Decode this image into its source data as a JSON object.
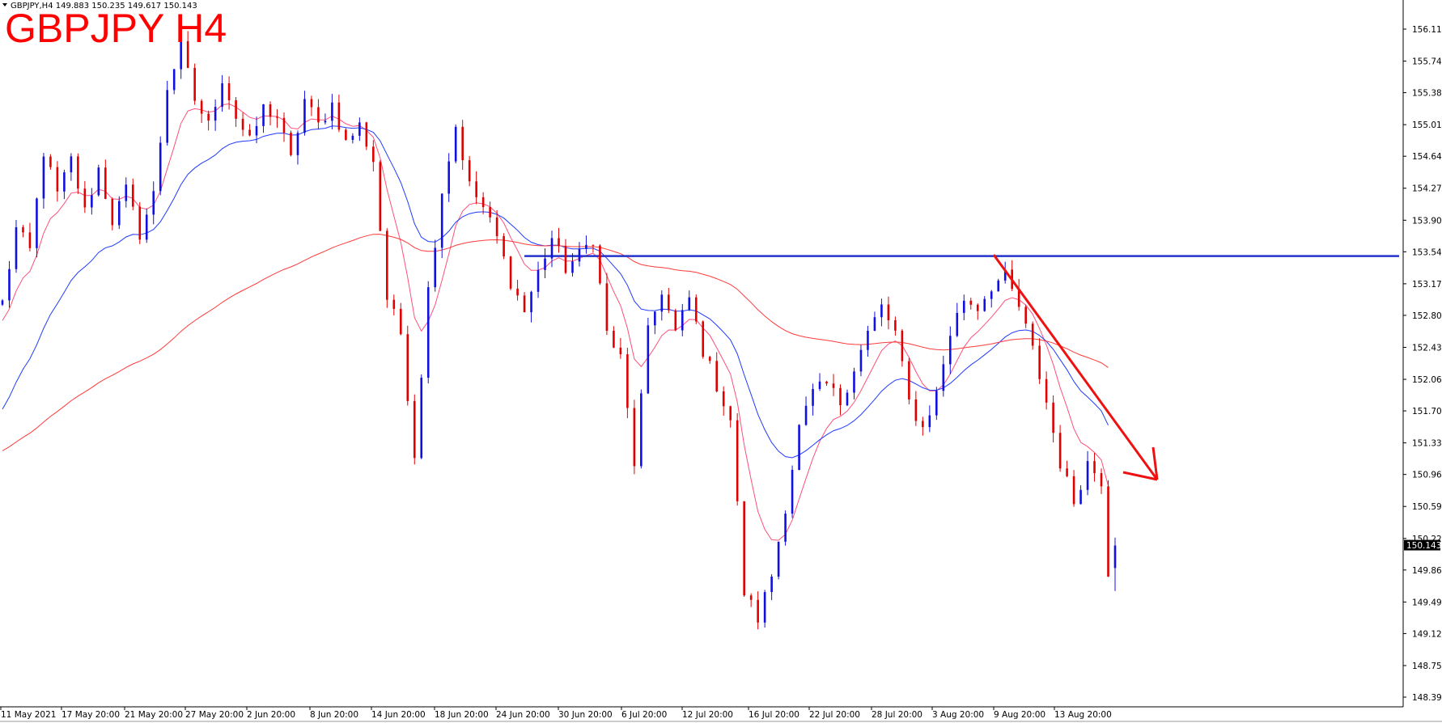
{
  "header": {
    "info_text": "GBPJPY,H4  149.883 150.235 149.617 150.143",
    "big_title": "GBPJPY H4"
  },
  "chart_data": {
    "type": "candlestick",
    "symbol": "GBPJPY",
    "timeframe": "H4",
    "ohlc_last": {
      "open": 149.883,
      "high": 150.235,
      "low": 149.617,
      "close": 150.143
    },
    "current_price_label": "150.143",
    "y_ticks": [
      "156.115",
      "155.745",
      "155.380",
      "155.010",
      "154.645",
      "154.275",
      "153.905",
      "153.540",
      "153.170",
      "152.805",
      "152.435",
      "152.065",
      "151.700",
      "151.330",
      "150.965",
      "150.595",
      "150.225",
      "149.860",
      "149.490",
      "149.125",
      "148.755",
      "148.390"
    ],
    "ylim": [
      148.39,
      156.115
    ],
    "x_ticks": [
      "11 May 2021",
      "17 May 20:00",
      "21 May 20:00",
      "27 May 20:00",
      "2 Jun 20:00",
      "8 Jun 20:00",
      "14 Jun 20:00",
      "18 Jun 20:00",
      "24 Jun 20:00",
      "30 Jun 20:00",
      "6 Jul 20:00",
      "12 Jul 20:00",
      "16 Jul 20:00",
      "22 Jul 20:00",
      "28 Jul 20:00",
      "3 Aug 20:00",
      "9 Aug 20:00",
      "13 Aug 20:00"
    ],
    "price_path": [
      [
        0,
        152.95
      ],
      [
        2,
        153.8
      ],
      [
        4,
        153.55
      ],
      [
        6,
        154.7
      ],
      [
        8,
        154.2
      ],
      [
        10,
        154.6
      ],
      [
        12,
        154.0
      ],
      [
        14,
        154.5
      ],
      [
        16,
        153.9
      ],
      [
        18,
        154.25
      ],
      [
        20,
        153.75
      ],
      [
        22,
        154.2
      ],
      [
        24,
        155.45
      ],
      [
        26,
        155.9
      ],
      [
        28,
        155.3
      ],
      [
        30,
        155.0
      ],
      [
        32,
        155.55
      ],
      [
        34,
        155.1
      ],
      [
        36,
        154.8
      ],
      [
        38,
        155.2
      ],
      [
        40,
        155.1
      ],
      [
        42,
        154.6
      ],
      [
        44,
        155.3
      ],
      [
        46,
        155.0
      ],
      [
        48,
        155.25
      ],
      [
        50,
        154.8
      ],
      [
        52,
        155.0
      ],
      [
        54,
        154.6
      ],
      [
        56,
        153.0
      ],
      [
        58,
        152.6
      ],
      [
        60,
        151.2
      ],
      [
        62,
        153.1
      ],
      [
        64,
        154.25
      ],
      [
        66,
        155.0
      ],
      [
        68,
        154.3
      ],
      [
        70,
        154.05
      ],
      [
        72,
        153.7
      ],
      [
        74,
        153.2
      ],
      [
        76,
        152.85
      ],
      [
        78,
        153.3
      ],
      [
        80,
        153.7
      ],
      [
        82,
        153.35
      ],
      [
        84,
        153.5
      ],
      [
        86,
        153.7
      ],
      [
        88,
        152.6
      ],
      [
        90,
        152.3
      ],
      [
        92,
        151.1
      ],
      [
        94,
        152.6
      ],
      [
        96,
        153.1
      ],
      [
        98,
        152.6
      ],
      [
        100,
        153.0
      ],
      [
        102,
        152.4
      ],
      [
        104,
        152.0
      ],
      [
        106,
        151.6
      ],
      [
        108,
        149.6
      ],
      [
        110,
        149.3
      ],
      [
        112,
        149.8
      ],
      [
        114,
        150.6
      ],
      [
        116,
        151.5
      ],
      [
        118,
        151.9
      ],
      [
        120,
        152.0
      ],
      [
        122,
        151.8
      ],
      [
        124,
        152.2
      ],
      [
        126,
        152.6
      ],
      [
        128,
        152.9
      ],
      [
        130,
        152.6
      ],
      [
        132,
        151.8
      ],
      [
        134,
        151.5
      ],
      [
        136,
        151.9
      ],
      [
        138,
        152.6
      ],
      [
        140,
        153.0
      ],
      [
        142,
        152.9
      ],
      [
        144,
        153.15
      ],
      [
        146,
        153.25
      ],
      [
        148,
        152.9
      ],
      [
        150,
        152.4
      ],
      [
        152,
        151.8
      ],
      [
        154,
        151.1
      ],
      [
        156,
        150.65
      ],
      [
        158,
        151.1
      ],
      [
        160,
        150.9
      ],
      [
        161,
        149.85
      ],
      [
        162,
        150.143
      ]
    ],
    "bar_count": 163,
    "moving_averages": [
      {
        "color": "#ff4f7a",
        "period": "fast"
      },
      {
        "color": "#1f3bff",
        "period": "medium"
      },
      {
        "color": "#ff3a3a",
        "period": "slow"
      }
    ],
    "horizontal_level": {
      "price": 153.49,
      "color": "#2233cc"
    },
    "annotation_arrow": {
      "direction": "down",
      "color": "#ee1111",
      "from": [
        1228,
        315
      ],
      "to": [
        1430,
        593
      ]
    },
    "colors": {
      "bull": "#1010e0",
      "bear": "#e00000",
      "background": "#ffffff",
      "axis": "#000000"
    }
  }
}
